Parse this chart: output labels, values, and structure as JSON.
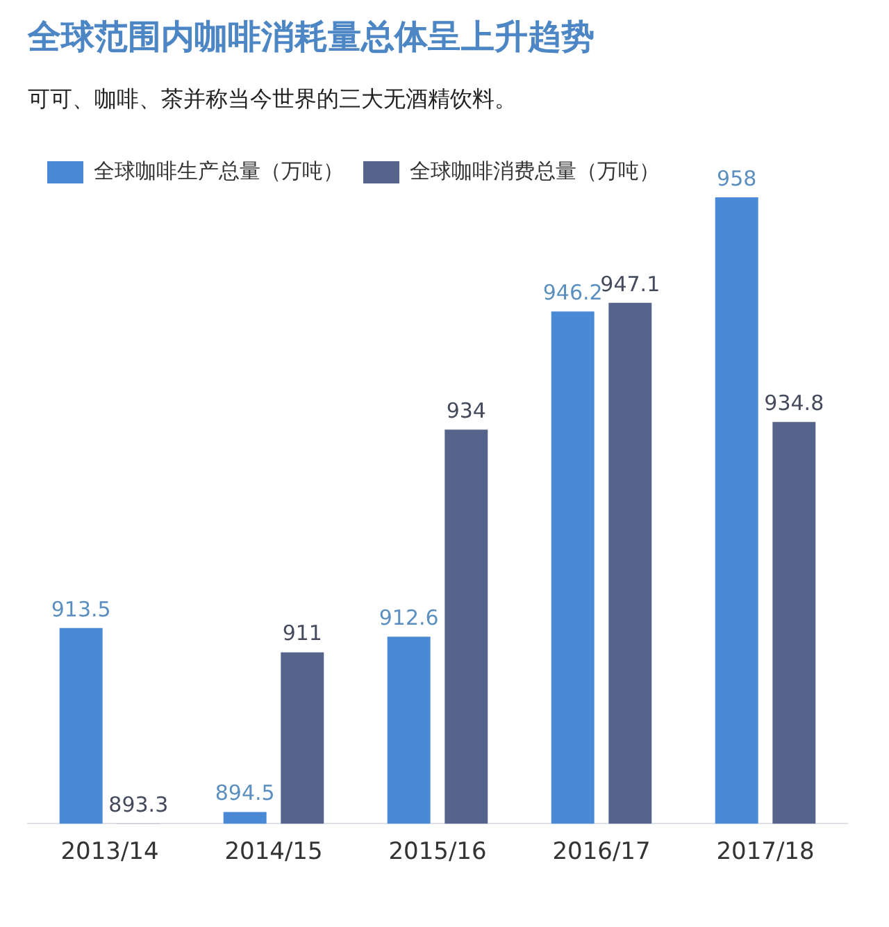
{
  "chart_data": {
    "type": "bar",
    "title": "全球范围内咖啡消耗量总体呈上升趋势",
    "subtitle": "可可、咖啡、茶并称当今世界的三大无酒精饮料。",
    "categories": [
      "2013/14",
      "2014/15",
      "2015/16",
      "2016/17",
      "2017/18"
    ],
    "series": [
      {
        "name": "全球咖啡生产总量（万吨）",
        "color": "#4a89d6",
        "values": [
          913.5,
          894.5,
          912.6,
          946.2,
          958
        ]
      },
      {
        "name": "全球咖啡消费总量（万吨）",
        "color": "#56638a",
        "values": [
          893.3,
          911,
          934,
          947.1,
          934.8
        ]
      }
    ],
    "tick_labels": "x",
    "data_labels": true,
    "legend": "top left",
    "grid": false
  }
}
